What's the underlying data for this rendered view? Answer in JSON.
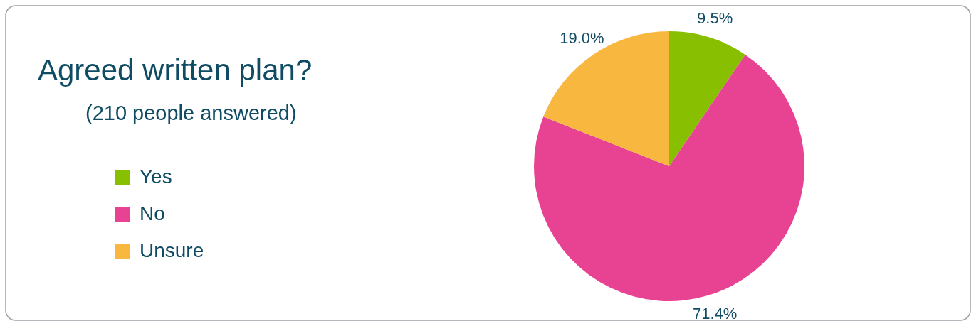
{
  "chart_data": {
    "type": "pie",
    "title": "Agreed written plan?",
    "subtitle": "(210 people answered)",
    "categories": [
      "Yes",
      "No",
      "Unsure"
    ],
    "values": [
      9.5,
      71.4,
      19.0
    ],
    "colors": [
      "#88bf00",
      "#e84393",
      "#f8b73f"
    ],
    "data_labels": true,
    "value_labels": [
      "9.5%",
      "71.4%",
      "19.0%"
    ],
    "legend": "left"
  }
}
